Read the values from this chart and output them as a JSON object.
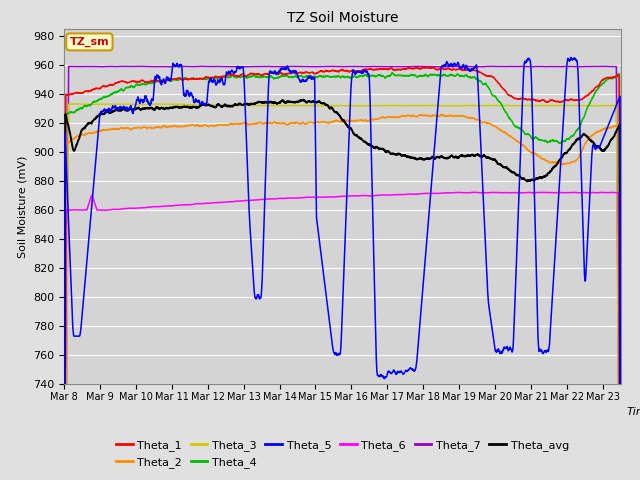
{
  "title": "TZ Soil Moisture",
  "ylabel": "Soil Moisture (mV)",
  "xlabel": "Time",
  "ylim": [
    740,
    985
  ],
  "yticks": [
    740,
    760,
    780,
    800,
    820,
    840,
    860,
    880,
    900,
    920,
    940,
    960,
    980
  ],
  "x_tick_labels": [
    "Mar 8",
    "Mar 9",
    "Mar 10",
    "Mar 11",
    "Mar 12",
    "Mar 13",
    "Mar 14",
    "Mar 15",
    "Mar 16",
    "Mar 17",
    "Mar 18",
    "Mar 19",
    "Mar 20",
    "Mar 21",
    "Mar 22",
    "Mar 23"
  ],
  "bg_color": "#e0e0e0",
  "plot_bg_color": "#d4d4d4",
  "grid_color": "#ffffff",
  "series_colors": {
    "Theta_1": "#ff0000",
    "Theta_2": "#ff8c00",
    "Theta_3": "#cccc00",
    "Theta_4": "#00bb00",
    "Theta_5": "#0000ff",
    "Theta_6": "#ff00ff",
    "Theta_7": "#9900cc",
    "Theta_avg": "#000000"
  }
}
